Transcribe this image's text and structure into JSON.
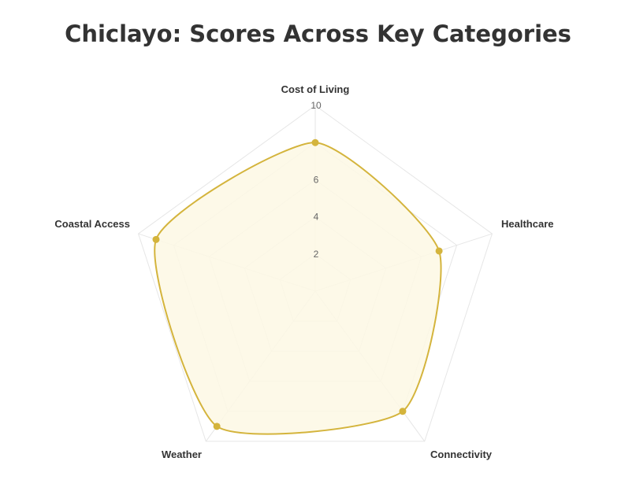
{
  "title": "Chiclayo: Scores Across Key Categories",
  "chart_data": {
    "type": "radar",
    "title": "Chiclayo: Scores Across Key Categories",
    "categories": [
      "Cost of Living",
      "Healthcare",
      "Connectivity",
      "Weather",
      "Coastal Access"
    ],
    "series": [
      {
        "name": "",
        "values": [
          8,
          7,
          8,
          9,
          9
        ]
      }
    ],
    "rlim": [
      0,
      10
    ],
    "ticks": [
      2,
      4,
      6,
      10
    ],
    "grid": true,
    "legend": "none",
    "colors": {
      "line": "#d4b43c",
      "fill": "#fdf8e4",
      "point": "#d4b43c",
      "grid": "#e6e6e6"
    }
  }
}
